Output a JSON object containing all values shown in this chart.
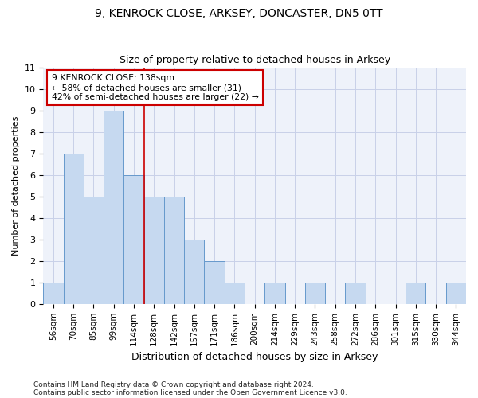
{
  "title1": "9, KENROCK CLOSE, ARKSEY, DONCASTER, DN5 0TT",
  "title2": "Size of property relative to detached houses in Arksey",
  "xlabel": "Distribution of detached houses by size in Arksey",
  "ylabel": "Number of detached properties",
  "categories": [
    "56sqm",
    "70sqm",
    "85sqm",
    "99sqm",
    "114sqm",
    "128sqm",
    "142sqm",
    "157sqm",
    "171sqm",
    "186sqm",
    "200sqm",
    "214sqm",
    "229sqm",
    "243sqm",
    "258sqm",
    "272sqm",
    "286sqm",
    "301sqm",
    "315sqm",
    "330sqm",
    "344sqm"
  ],
  "values": [
    1,
    7,
    5,
    9,
    6,
    5,
    5,
    3,
    2,
    1,
    0,
    1,
    0,
    1,
    0,
    1,
    0,
    0,
    1,
    0,
    1
  ],
  "bar_color": "#c6d9f0",
  "bar_edge_color": "#6699cc",
  "vline_color": "#cc0000",
  "vline_x": 4.5,
  "annotation_line1": "9 KENROCK CLOSE: 138sqm",
  "annotation_line2": "← 58% of detached houses are smaller (31)",
  "annotation_line3": "42% of semi-detached houses are larger (22) →",
  "annotation_box_color": "#cc0000",
  "ylim": [
    0,
    11
  ],
  "yticks": [
    0,
    1,
    2,
    3,
    4,
    5,
    6,
    7,
    8,
    9,
    10,
    11
  ],
  "grid_color": "#c8d0e8",
  "background_color": "#eef2fa",
  "footer_line1": "Contains HM Land Registry data © Crown copyright and database right 2024.",
  "footer_line2": "Contains public sector information licensed under the Open Government Licence v3.0.",
  "title1_fontsize": 10,
  "title2_fontsize": 9,
  "ylabel_fontsize": 8,
  "xlabel_fontsize": 9,
  "tick_fontsize": 7.5
}
